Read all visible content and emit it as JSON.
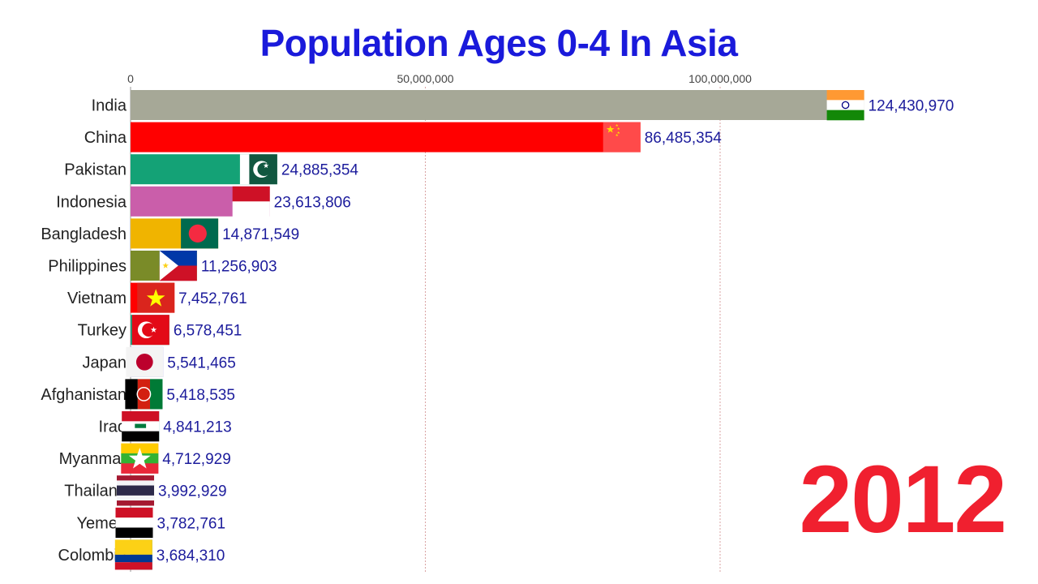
{
  "chart_data": {
    "type": "bar",
    "orientation": "horizontal",
    "title": "Population Ages 0-4 In Asia",
    "year": "2012",
    "xlim": [
      0,
      155000000
    ],
    "xticks": [
      {
        "value": 0,
        "label": "0"
      },
      {
        "value": 50000000,
        "label": "50,000,000"
      },
      {
        "value": 100000000,
        "label": "100,000,000"
      }
    ],
    "grid": true,
    "categories": [
      "India",
      "China",
      "Pakistan",
      "Indonesia",
      "Bangladesh",
      "Philippines",
      "Vietnam",
      "Turkey",
      "Japan",
      "Afghanistan",
      "Iraq",
      "Myanmar",
      "Thailand",
      "Yemen",
      "Colombia"
    ],
    "values": [
      124430970,
      86485354,
      24885354,
      23613806,
      14871549,
      11256903,
      7452761,
      6578451,
      5541465,
      5418535,
      4841213,
      4712929,
      3992929,
      3782761,
      3684310
    ],
    "value_labels": [
      "124,430,970",
      "86,485,354",
      "24,885,354",
      "23,613,806",
      "14,871,549",
      "11,256,903",
      "7,452,761",
      "6,578,451",
      "5,541,465",
      "5,418,535",
      "4,841,213",
      "4,712,929",
      "3,992,929",
      "3,782,761",
      "3,684,310"
    ],
    "colors": [
      "#a6a897",
      "#ff0000",
      "#14a276",
      "#ca5eaa",
      "#f0b400",
      "#7a8b28",
      "#ff0000",
      "#1aa27e",
      "#7b82e0",
      "#14a276",
      "#14a0aa",
      "#d0609a",
      "#9a8a22",
      "#16a0aa",
      "#118a96"
    ],
    "flags": [
      "india-flag-icon",
      "china-flag-icon",
      "pakistan-flag-icon",
      "indonesia-flag-icon",
      "bangladesh-flag-icon",
      "philippines-flag-icon",
      "vietnam-flag-icon",
      "turkey-flag-icon",
      "japan-flag-icon",
      "afghanistan-flag-icon",
      "iraq-flag-icon",
      "myanmar-flag-icon",
      "thailand-flag-icon",
      "yemen-flag-icon",
      "colombia-flag-icon"
    ]
  }
}
